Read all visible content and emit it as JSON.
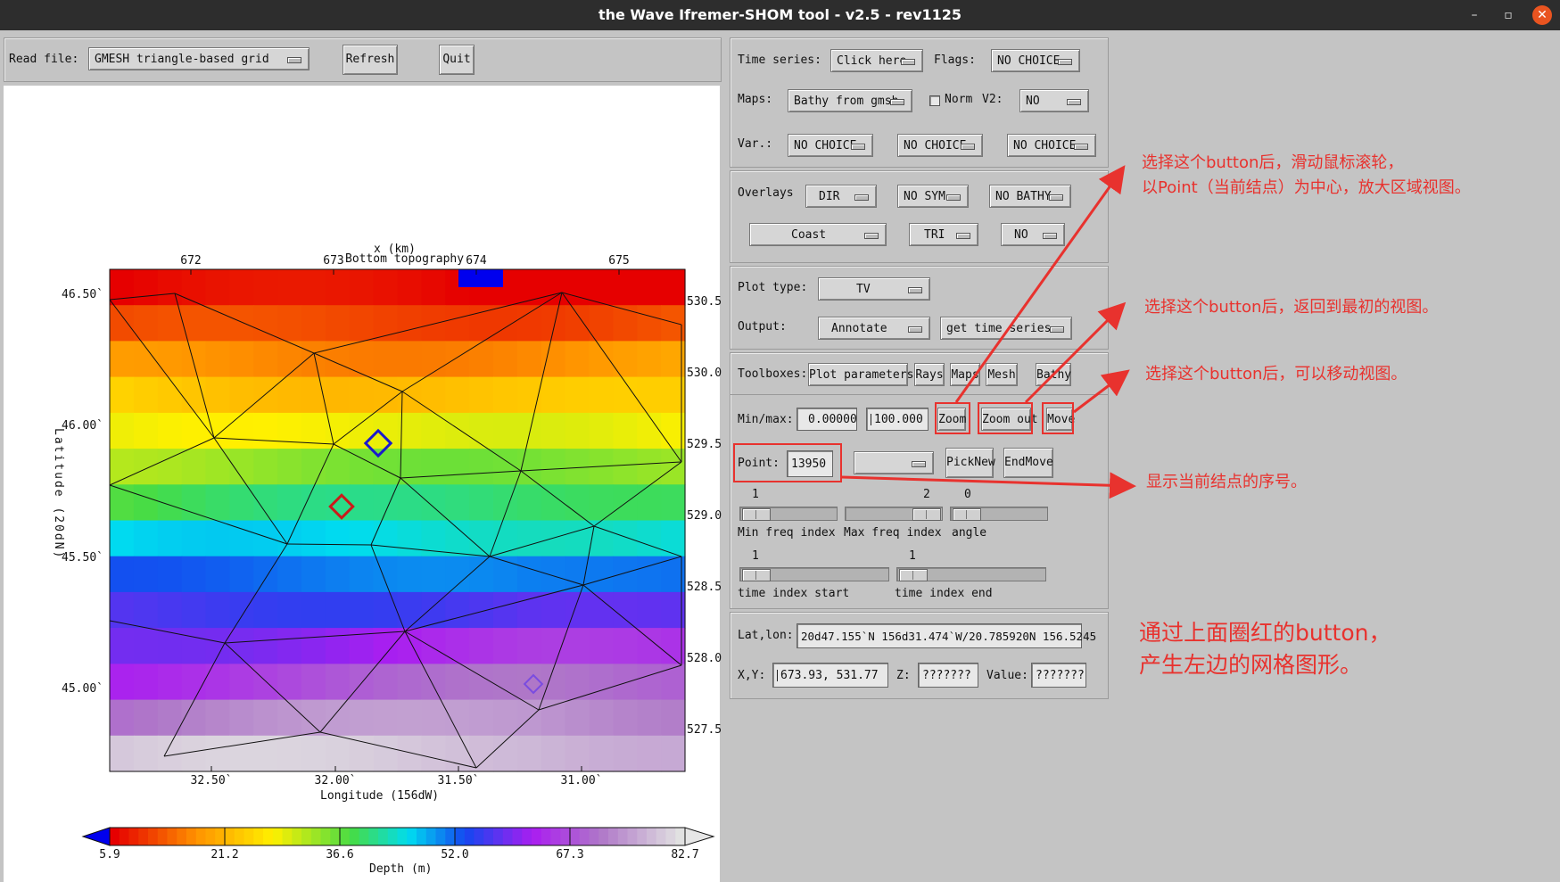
{
  "window": {
    "title": "the Wave Ifremer-SHOM tool - v2.5 - rev1125"
  },
  "toolbar": {
    "read_label": "Read file:",
    "file_select": "GMESH triangle-based grid",
    "refresh": "Refresh",
    "quit": "Quit"
  },
  "plot": {
    "title": "Bottom topography",
    "top_axis_label": "x (km)",
    "top_ticks": [
      "672",
      "673",
      "674",
      "675"
    ],
    "ylabel": "Latitude (20dN)",
    "yticks": [
      "46.50`",
      "46.00`",
      "45.50`",
      "45.00`"
    ],
    "right_ticks": [
      "530.5",
      "530.0",
      "529.5",
      "529.0",
      "528.5",
      "528.0",
      "527.5"
    ],
    "xticks": [
      "32.50`",
      "32.00`",
      "31.50`",
      "31.00`"
    ],
    "xlabel": "Longitude (156dW)"
  },
  "colorbar": {
    "ticks": [
      "5.9",
      "21.2",
      "36.6",
      "52.0",
      "67.3",
      "82.7"
    ],
    "label": "Depth (m)"
  },
  "controls": {
    "time_series_label": "Time series:",
    "time_series_value": "Click here",
    "flags_label": "Flags:",
    "flags_value": "NO CHOICE",
    "maps_label": "Maps:",
    "maps_value": "Bathy from gmsh",
    "norm_label": "Norm",
    "v2_label": "V2:",
    "v2_value": "NO",
    "var_label": "Var.:",
    "var_values": [
      "NO CHOICE",
      "NO CHOICE",
      "NO CHOICE"
    ],
    "overlays_label": "Overlays",
    "overlay_row1": [
      "DIR",
      "NO SYM",
      "NO BATHY"
    ],
    "overlay_row2": [
      "Coast",
      "TRI",
      "NO"
    ],
    "plot_type_label": "Plot type:",
    "plot_type_value": "TV",
    "output_label": "Output:",
    "output_value": "Annotate",
    "output_value2": "get time series",
    "toolboxes_label": "Toolboxes:",
    "toolboxes": [
      "Plot parameters",
      "Rays",
      "Maps",
      "Mesh",
      "Bathy"
    ],
    "minmax_label": "Min/max:",
    "min_value": "0.00000",
    "max_value": "100.000",
    "zoom": "Zoom",
    "zoom_out": "Zoom out",
    "move": "Move",
    "point_label": "Point:",
    "point_value": "13950",
    "pick_new": "PickNew",
    "end_move": "EndMove",
    "min_freq_value": "1",
    "max_freq_value": "2",
    "angle_value": "0",
    "min_freq_label": "Min freq index",
    "max_freq_label": "Max freq index",
    "angle_label": "angle",
    "tstart_value": "1",
    "tend_value": "1",
    "tstart_label": "time index start",
    "tend_label": "time index end",
    "latlon_label": "Lat,lon:",
    "latlon_value": "20d47.155`N 156d31.474`W/20.785920N 156.5245",
    "xy_label": "X,Y:",
    "xy_value": "673.93,  531.77",
    "z_label": "Z:",
    "z_value": "???????",
    "value_label": "Value:",
    "value_value": "???????"
  },
  "annotations": {
    "zoom_note_line1": "选择这个button后，滑动鼠标滚轮，",
    "zoom_note_line2": "以Point（当前结点）为中心，放大区域视图。",
    "zoomout_note": "选择这个button后，返回到最初的视图。",
    "move_note": "选择这个button后，可以移动视图。",
    "point_note": "显示当前结点的序号。",
    "summary_line1": "通过上面圈红的button，",
    "summary_line2": "产生左边的网格图形。"
  }
}
